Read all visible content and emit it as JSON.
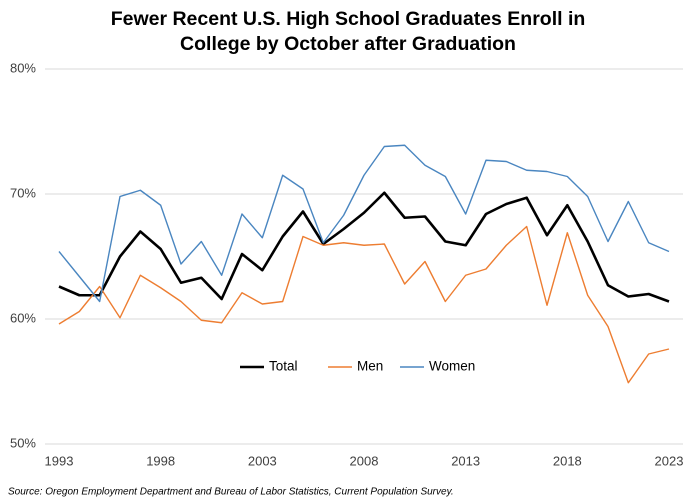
{
  "chart_data": {
    "type": "line",
    "title": "Fewer Recent U.S. High School Graduates Enroll in College by October after Graduation",
    "source": "Source: Oregon Employment Department and Bureau of Labor Statistics, Current Population Survey.",
    "x": [
      1993,
      1994,
      1995,
      1996,
      1997,
      1998,
      1999,
      2000,
      2001,
      2002,
      2003,
      2004,
      2005,
      2006,
      2007,
      2008,
      2009,
      2010,
      2011,
      2012,
      2013,
      2014,
      2015,
      2016,
      2017,
      2018,
      2019,
      2020,
      2021,
      2022,
      2023
    ],
    "series": [
      {
        "name": "Total",
        "color": "#000000",
        "width": 2.6,
        "values": [
          62.6,
          61.9,
          61.9,
          65.0,
          67.0,
          65.6,
          62.9,
          63.3,
          61.6,
          65.2,
          63.9,
          66.6,
          68.6,
          66.0,
          67.2,
          68.5,
          70.1,
          68.1,
          68.2,
          66.2,
          65.9,
          68.4,
          69.2,
          69.7,
          66.7,
          69.1,
          66.2,
          62.7,
          61.8,
          62.0,
          61.4
        ]
      },
      {
        "name": "Men",
        "color": "#ed7d31",
        "width": 1.4,
        "values": [
          59.6,
          60.6,
          62.6,
          60.1,
          63.5,
          62.5,
          61.4,
          59.9,
          59.7,
          62.1,
          61.2,
          61.4,
          66.6,
          65.9,
          66.1,
          65.9,
          66.0,
          62.8,
          64.6,
          61.4,
          63.5,
          64.0,
          65.9,
          67.4,
          61.1,
          66.9,
          61.9,
          59.4,
          54.9,
          57.2,
          57.6
        ]
      },
      {
        "name": "Women",
        "color": "#4a86c0",
        "width": 1.4,
        "values": [
          65.4,
          63.4,
          61.4,
          69.8,
          70.3,
          69.1,
          64.4,
          66.2,
          63.5,
          68.4,
          66.5,
          71.5,
          70.4,
          66.1,
          68.3,
          71.5,
          73.8,
          73.9,
          72.3,
          71.4,
          68.4,
          72.7,
          72.6,
          71.9,
          71.8,
          71.4,
          69.8,
          66.2,
          69.4,
          66.1,
          65.4
        ]
      }
    ],
    "xlim": [
      1993,
      2023
    ],
    "xticks": [
      1993,
      1998,
      2003,
      2008,
      2013,
      2018,
      2023
    ],
    "ylim": [
      50,
      80
    ],
    "yticks": [
      {
        "value": 50,
        "label": "50%"
      },
      {
        "value": 60,
        "label": "60%"
      },
      {
        "value": 70,
        "label": "70%"
      },
      {
        "value": 80,
        "label": "80%"
      }
    ],
    "grid": true,
    "legend": "center"
  }
}
